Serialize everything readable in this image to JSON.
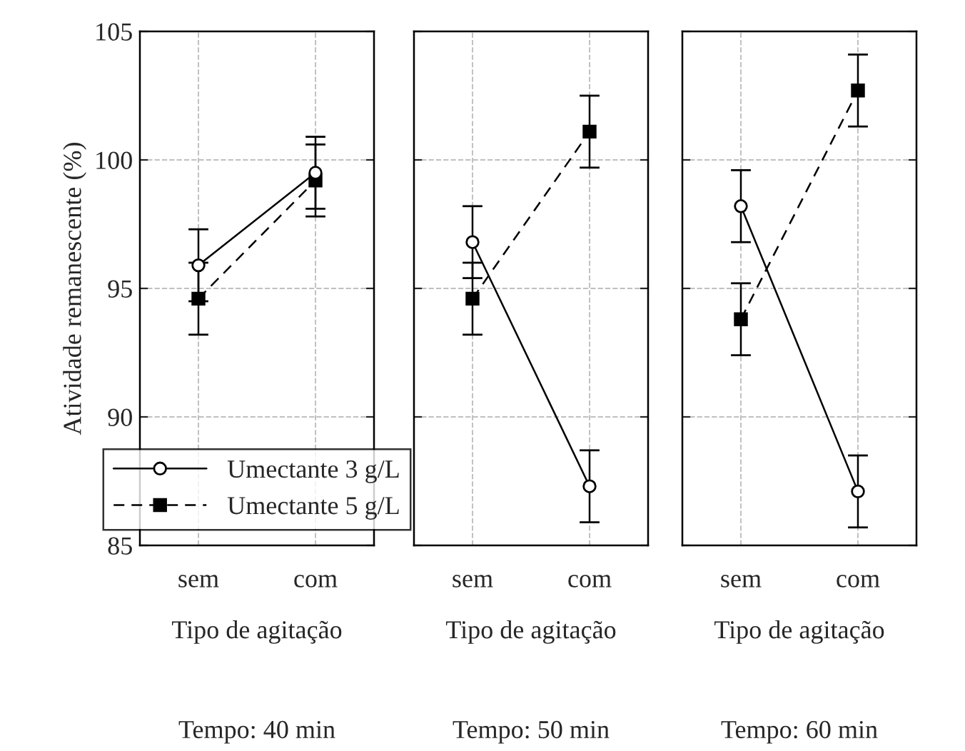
{
  "chart_data": [
    {
      "type": "line",
      "xlabel": "Tipo de agitação",
      "ylabel": "Atividade remanescente (%)",
      "annotations": [
        "Tempo: 40 min"
      ],
      "categories": [
        "sem",
        "com"
      ],
      "ylim": [
        85,
        105
      ],
      "yticks": [
        85,
        90,
        95,
        100,
        105
      ],
      "grid": true,
      "legend": "bottom",
      "series": [
        {
          "name": "Umectante 3 g/L",
          "color": "#000000",
          "marker": "circle",
          "line_style": "solid",
          "values": [
            95.9,
            99.5
          ],
          "errors": [
            1.4,
            1.4
          ]
        },
        {
          "name": "Umectante 5 g/L",
          "color": "#000000",
          "marker": "square",
          "line_style": "dashed",
          "values": [
            94.6,
            99.2
          ],
          "errors": [
            1.4,
            1.4
          ]
        }
      ]
    },
    {
      "type": "line",
      "xlabel": "Tipo de agitação",
      "annotations": [
        "Tempo: 50 min"
      ],
      "categories": [
        "sem",
        "com"
      ],
      "ylim": [
        85,
        105
      ],
      "yticks": [
        85,
        90,
        95,
        100,
        105
      ],
      "grid": true,
      "tick_labels": "x",
      "series": [
        {
          "color": "#000000",
          "marker": "circle",
          "line_style": "solid",
          "values": [
            96.8,
            87.3
          ],
          "errors": [
            1.4,
            1.4
          ]
        },
        {
          "color": "#000000",
          "marker": "square",
          "line_style": "dashed",
          "values": [
            94.6,
            101.1
          ],
          "errors": [
            1.4,
            1.4
          ]
        }
      ]
    },
    {
      "type": "line",
      "xlabel": "Tipo de agitação",
      "annotations": [
        "Tempo: 60 min"
      ],
      "categories": [
        "sem",
        "com"
      ],
      "ylim": [
        85,
        105
      ],
      "yticks": [
        85,
        90,
        95,
        100,
        105
      ],
      "grid": true,
      "tick_labels": "x",
      "series": [
        {
          "color": "#000000",
          "marker": "circle",
          "line_style": "solid",
          "values": [
            98.2,
            87.1
          ],
          "errors": [
            1.4,
            1.4
          ]
        },
        {
          "color": "#000000",
          "marker": "square",
          "line_style": "dashed",
          "values": [
            93.8,
            102.7
          ],
          "errors": [
            1.4,
            1.4
          ]
        }
      ]
    }
  ]
}
